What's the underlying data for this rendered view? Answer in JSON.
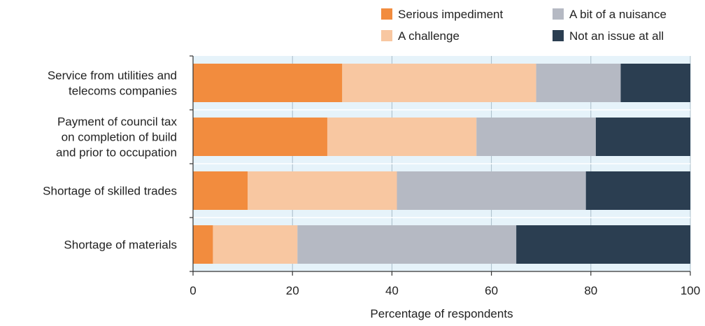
{
  "chart_data": {
    "type": "bar",
    "orientation": "horizontal",
    "stacked": true,
    "title": "",
    "xlabel": "Percentage of respondents",
    "ylabel": "",
    "xlim": [
      0,
      100
    ],
    "xticks": [
      0,
      20,
      40,
      60,
      80,
      100
    ],
    "grid": true,
    "legend_position": "top-right",
    "categories": [
      [
        "Service from utilities and",
        "telecoms companies"
      ],
      [
        "Payment of council tax",
        "on completion of build",
        "and prior to occupation"
      ],
      [
        "Shortage of skilled trades"
      ],
      [
        "Shortage of materials"
      ]
    ],
    "series": [
      {
        "name": "Serious impediment",
        "color": "#F28C3E",
        "values": [
          30,
          27,
          11,
          4
        ]
      },
      {
        "name": "A challenge",
        "color": "#F8C7A1",
        "values": [
          39,
          30,
          30,
          17
        ]
      },
      {
        "name": "A bit of a nuisance",
        "color": "#B5B9C3",
        "values": [
          17,
          24,
          38,
          44
        ]
      },
      {
        "name": "Not an issue at all",
        "color": "#2B3E51",
        "values": [
          14,
          19,
          21,
          35
        ]
      }
    ],
    "colors": {
      "plot_background": "#E6F3FA",
      "grid": "#A9BCC8",
      "axis": "#333333"
    }
  }
}
